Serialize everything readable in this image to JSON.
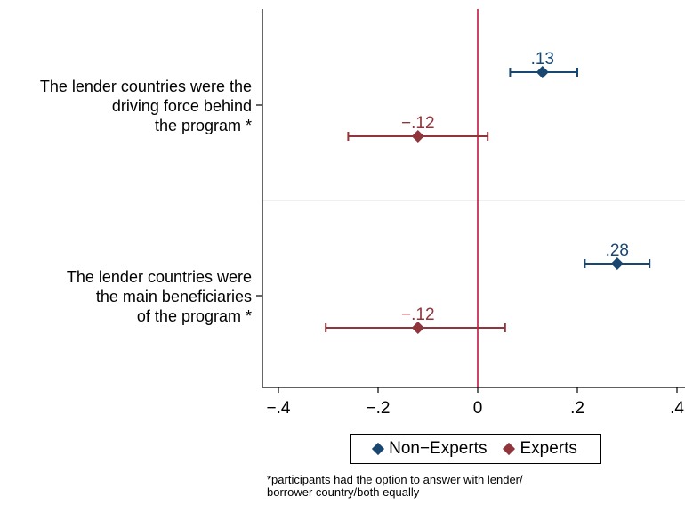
{
  "chart_data": {
    "type": "scatter",
    "subtype": "coefficient-plot",
    "categories": [
      [
        "The lender countries were the",
        "driving force behind",
        "the program *"
      ],
      [
        "The lender countries were",
        "the main beneficiaries",
        "of the program *"
      ]
    ],
    "xlim": [
      -0.42,
      0.41
    ],
    "xticks": [
      -0.4,
      -0.2,
      0,
      0.2,
      0.4
    ],
    "xtick_labels": [
      "−.4",
      "−.2",
      "0",
      ".2",
      ".4"
    ],
    "reference_line": 0,
    "series": [
      {
        "name": "Non−Experts",
        "color": "#1a476f",
        "estimates": [
          0.13,
          0.28
        ],
        "ci_low": [
          0.065,
          0.215
        ],
        "ci_high": [
          0.2,
          0.345
        ],
        "labels": [
          ".13",
          ".28"
        ]
      },
      {
        "name": "Experts",
        "color": "#90353b",
        "estimates": [
          -0.12,
          -0.12
        ],
        "ci_low": [
          -0.26,
          -0.305
        ],
        "ci_high": [
          0.02,
          0.055
        ],
        "labels": [
          "−.12",
          "−.12"
        ]
      }
    ],
    "legend_position": "bottom",
    "grid": false
  },
  "legend": {
    "nonexperts_label": "Non−Experts",
    "experts_label": "Experts"
  },
  "footnote": {
    "line1": "*participants had the option to answer with lender/",
    "line2": "borrower country/both equally"
  },
  "colors": {
    "nonexperts": "#1a476f",
    "experts": "#90353b",
    "zero_line": "#c10534",
    "divider": "#eaeaea"
  }
}
